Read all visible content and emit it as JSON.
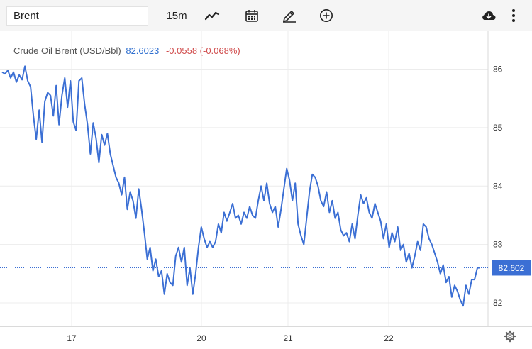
{
  "toolbar": {
    "symbol": "Brent",
    "interval": "15m",
    "icons": [
      "line-style-icon",
      "calendar-icon",
      "draw-pencil-icon",
      "add-circle-icon",
      "cloud-download-icon",
      "more-vert-icon",
      "settings-gear-icon"
    ]
  },
  "legend": {
    "name": "Crude Oil Brent (USD/Bbl)",
    "price": "82.6023",
    "change": "-0.0558 (-0.068%)"
  },
  "price_label": "82.602",
  "colors": {
    "line": "#3b6fd4",
    "price_tag": "#3b6fd4",
    "negative": "#d04b4b",
    "grid": "#ececec"
  },
  "chart_data": {
    "type": "line",
    "title": "Crude Oil Brent (USD/Bbl)",
    "xlabel": "",
    "ylabel": "",
    "x_ticks": [
      "17",
      "20",
      "21",
      "22"
    ],
    "y_ticks": [
      82,
      83,
      84,
      85,
      86
    ],
    "ylim": [
      81.6,
      86.65
    ],
    "last_price": 82.602,
    "grid": true,
    "series": [
      {
        "name": "Brent",
        "values": [
          85.95,
          85.92,
          85.98,
          85.85,
          85.95,
          85.78,
          85.9,
          85.82,
          86.05,
          85.8,
          85.7,
          85.2,
          84.8,
          85.3,
          84.75,
          85.45,
          85.6,
          85.55,
          85.2,
          85.72,
          85.05,
          85.55,
          85.85,
          85.35,
          85.8,
          85.1,
          84.95,
          85.8,
          85.85,
          85.4,
          85.05,
          84.55,
          85.08,
          84.82,
          84.4,
          84.88,
          84.7,
          84.9,
          84.55,
          84.35,
          84.15,
          84.05,
          83.85,
          84.15,
          83.6,
          83.9,
          83.75,
          83.45,
          83.95,
          83.6,
          83.2,
          82.75,
          82.95,
          82.55,
          82.75,
          82.45,
          82.55,
          82.15,
          82.5,
          82.35,
          82.3,
          82.8,
          82.95,
          82.7,
          82.95,
          82.3,
          82.6,
          82.15,
          82.5,
          82.95,
          83.3,
          83.1,
          82.95,
          83.05,
          82.95,
          83.05,
          83.35,
          83.2,
          83.55,
          83.4,
          83.55,
          83.7,
          83.45,
          83.5,
          83.35,
          83.55,
          83.45,
          83.65,
          83.5,
          83.45,
          83.75,
          84.0,
          83.75,
          84.05,
          83.7,
          83.55,
          83.65,
          83.3,
          83.6,
          83.95,
          84.3,
          84.1,
          83.75,
          84.05,
          83.35,
          83.15,
          83.0,
          83.45,
          83.9,
          84.2,
          84.15,
          84.0,
          83.75,
          83.65,
          83.9,
          83.55,
          83.75,
          83.45,
          83.55,
          83.25,
          83.15,
          83.2,
          83.05,
          83.35,
          83.1,
          83.5,
          83.85,
          83.7,
          83.8,
          83.55,
          83.45,
          83.7,
          83.55,
          83.4,
          83.1,
          83.35,
          82.95,
          83.2,
          83.05,
          83.3,
          82.9,
          83.0,
          82.7,
          82.85,
          82.6,
          82.8,
          83.05,
          82.9,
          83.35,
          83.3,
          83.1,
          83.0,
          82.85,
          82.7,
          82.5,
          82.65,
          82.35,
          82.45,
          82.1,
          82.3,
          82.2,
          82.05,
          81.95,
          82.3,
          82.15,
          82.4,
          82.4,
          82.6,
          82.602
        ],
        "color": "#3b6fd4"
      }
    ]
  }
}
